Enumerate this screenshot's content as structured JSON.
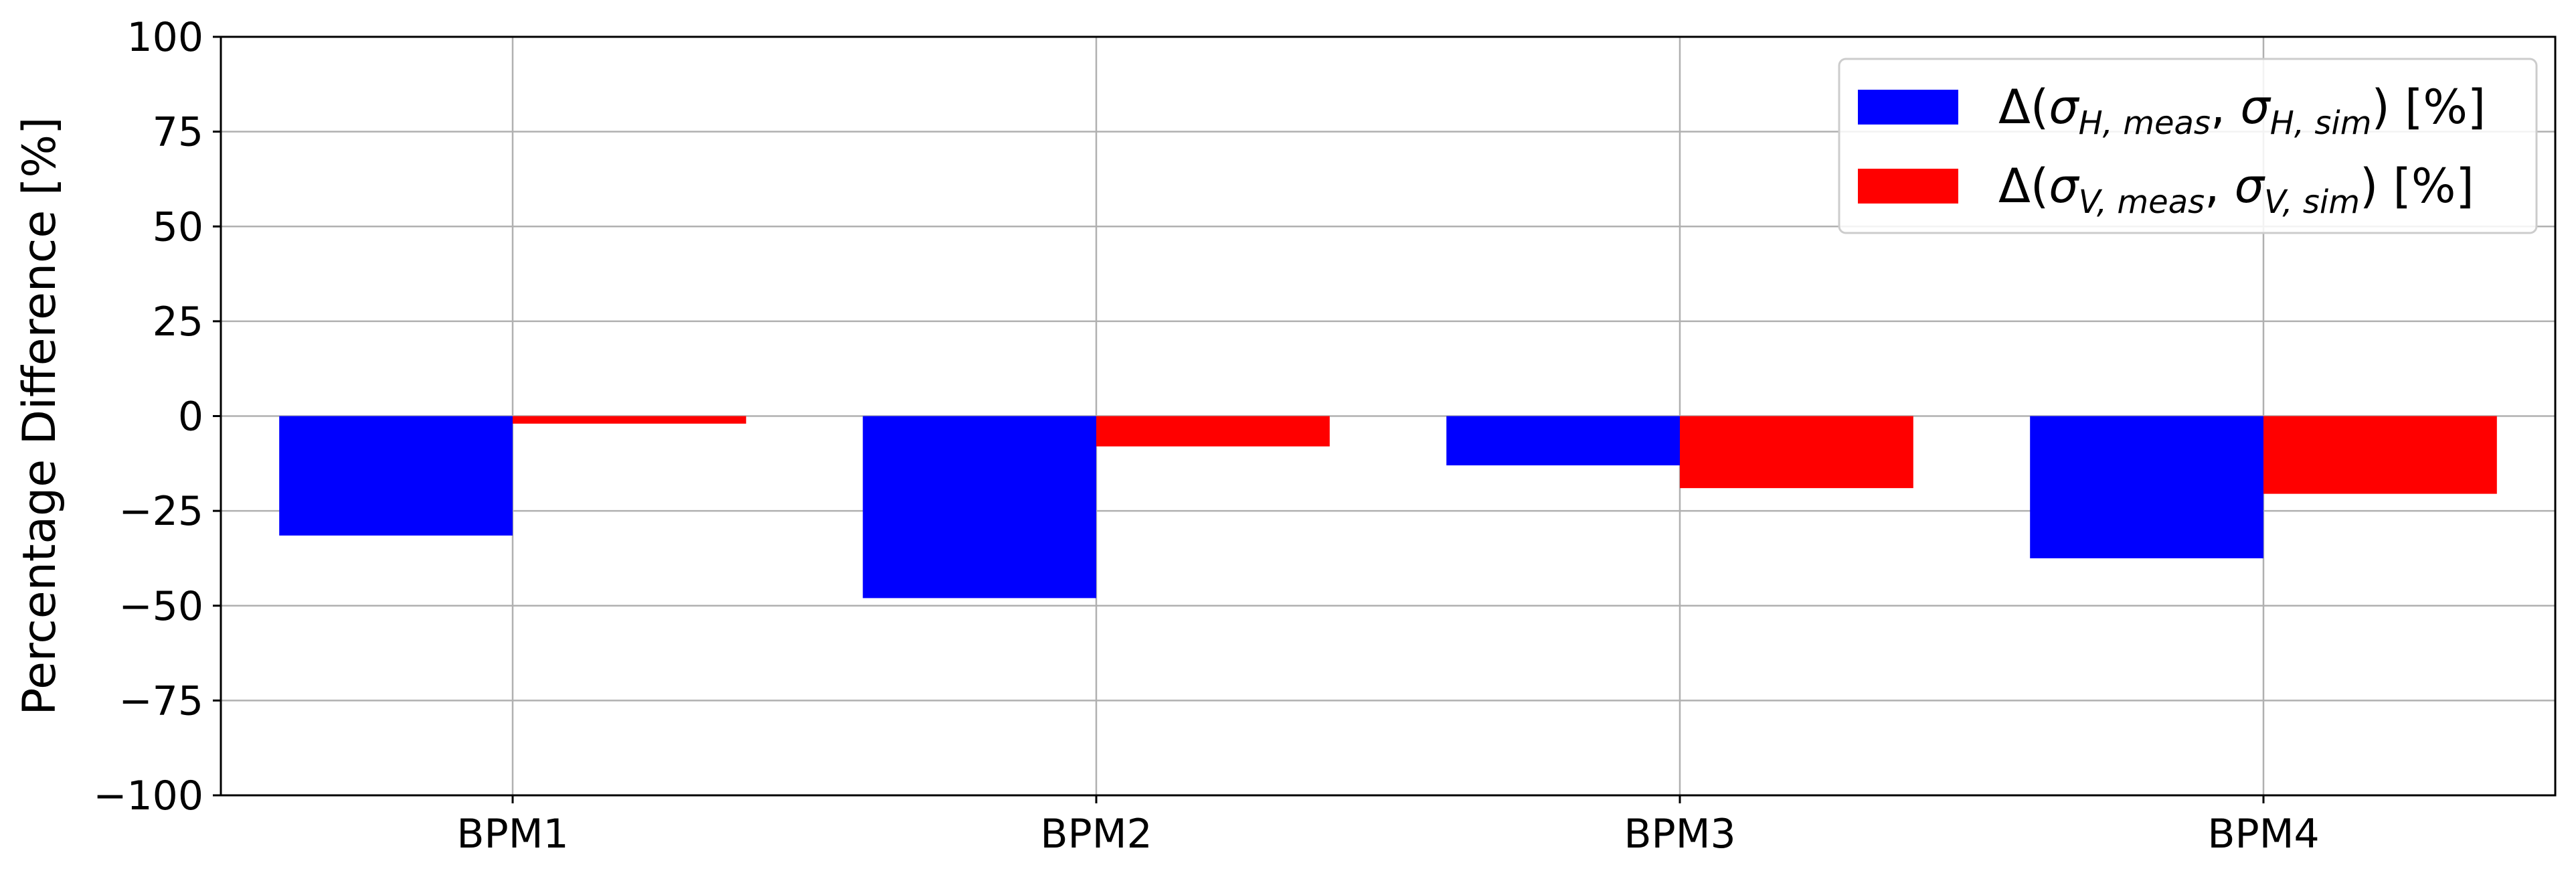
{
  "chart_data": {
    "type": "bar",
    "categories": [
      "BPM1",
      "BPM2",
      "BPM3",
      "BPM4"
    ],
    "series": [
      {
        "name": "Δ(σH,meas, σH,sim) [%]",
        "color": "#0000ff",
        "values": [
          -31.5,
          -48,
          -13,
          -37.5
        ]
      },
      {
        "name": "Δ(σV,meas, σV,sim) [%]",
        "color": "#ff0000",
        "values": [
          -2,
          -8,
          -19,
          -20.5
        ]
      }
    ],
    "title": "",
    "xlabel": "",
    "ylabel": "Percentage Difference [%]",
    "ylim": [
      -100,
      100
    ],
    "yticks": [
      100,
      75,
      50,
      25,
      0,
      -25,
      -50,
      -75,
      -100
    ],
    "ytick_labels": [
      "100",
      "75",
      "50",
      "25",
      "0",
      "−25",
      "−50",
      "−75",
      "−100"
    ],
    "grid": true,
    "legend": {
      "placement": "top-right",
      "entries": [
        {
          "delta": "Δ(",
          "sigma1": "σ",
          "sub1": "H, meas",
          "sep": ", ",
          "sigma2": "σ",
          "sub2": "H, sim",
          "tail": ") [%]"
        },
        {
          "delta": "Δ(",
          "sigma1": "σ",
          "sub1": "V, meas",
          "sep": ", ",
          "sigma2": "σ",
          "sub2": "V, sim",
          "tail": ") [%]"
        }
      ]
    }
  }
}
